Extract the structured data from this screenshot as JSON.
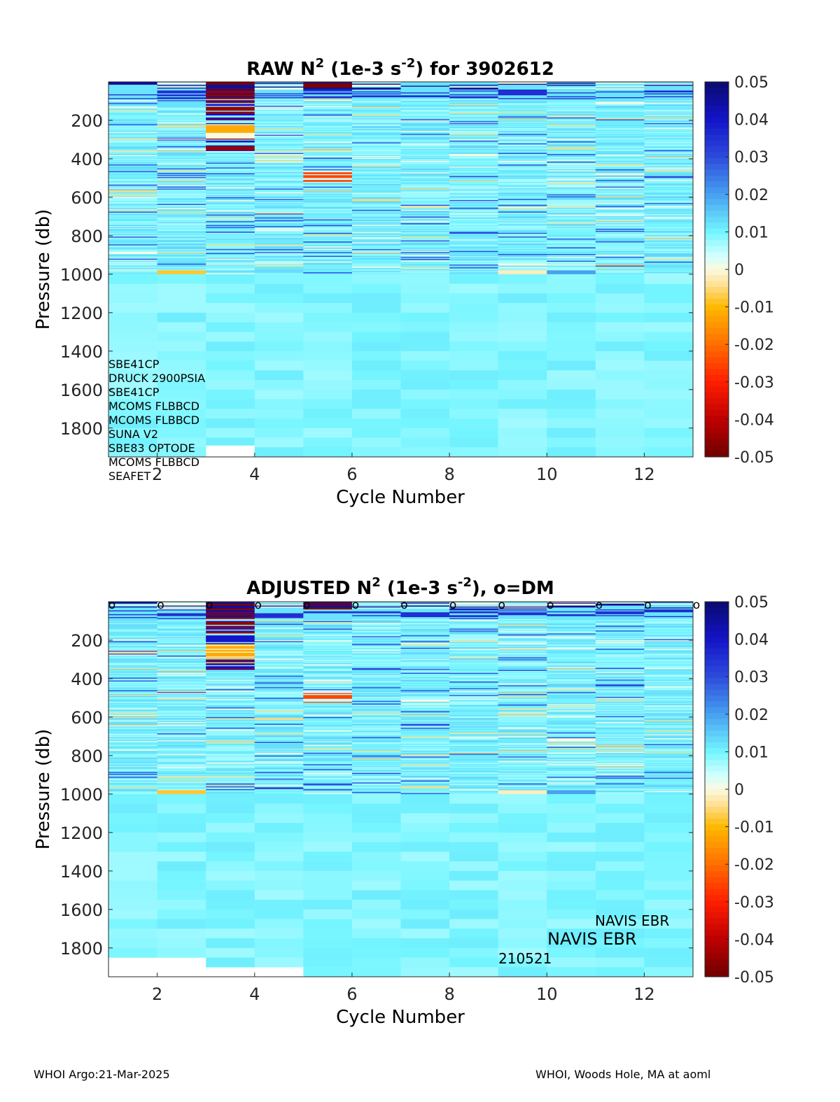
{
  "chart_data": [
    {
      "type": "heatmap",
      "title": "RAW N2 (1e-3 s-2) for 3902612",
      "title_parts": {
        "prefix": "RAW N",
        "sup1": "2",
        "middle": " (1e-3 s",
        "sup2": "-2",
        "suffix": ") for 3902612"
      },
      "xlabel": "Cycle Number",
      "ylabel": "Pressure (db)",
      "xlim": [
        1,
        13
      ],
      "ylim": [
        1950,
        0
      ],
      "y_reversed": true,
      "x_ticks": [
        2,
        4,
        6,
        8,
        10,
        12
      ],
      "y_ticks": [
        200,
        400,
        600,
        800,
        1000,
        1200,
        1400,
        1600,
        1800
      ],
      "color_limits": [
        -0.05,
        0.05
      ],
      "colormap": "blue-cyan-white-orange-red (negative red, positive blue)",
      "colorbar_ticks": [
        "0.05",
        "0.04",
        "0.03",
        "0.02",
        "0.01",
        "0",
        "-0.01",
        "-0.02",
        "-0.03",
        "-0.04",
        "-0.05"
      ],
      "cycles": [
        1,
        2,
        3,
        4,
        5,
        6,
        7,
        8,
        9,
        10,
        11,
        12
      ],
      "max_pressure": [
        1950,
        1950,
        1890,
        1950,
        1950,
        1950,
        1950,
        1950,
        1950,
        1950,
        1950,
        1950
      ],
      "upper_layer_typical": 0.01,
      "deep_layer_typical": 0.008,
      "notable_features": [
        {
          "cycle": 3,
          "pressure": [
            0,
            350
          ],
          "values": [
            -0.05,
            0.05
          ],
          "note": "strong alternating dark red / dark blue banding"
        },
        {
          "cycle": 3,
          "pressure": [
            220,
            290
          ],
          "values": [
            -0.012
          ],
          "note": "orange band"
        },
        {
          "cycle": 5,
          "pressure": [
            460,
            520
          ],
          "values": [
            -0.025
          ],
          "note": "orange-red bands"
        },
        {
          "cycle": 9,
          "pressure": [
            980,
            1000
          ],
          "value": -0.003,
          "note": "pale orange line"
        },
        {
          "cycle": 2,
          "pressure": [
            980,
            1000
          ],
          "value": -0.008,
          "note": "orange line"
        }
      ],
      "sensor_annotations": [
        "SBE41CP",
        "DRUCK 2900PSIA",
        "SBE41CP",
        "MCOMS FLBBCD",
        "MCOMS FLBBCD",
        "SUNA V2",
        "SBE83 OPTODE",
        "MCOMS FLBBCD",
        "SEAFET"
      ]
    },
    {
      "type": "heatmap",
      "title": "ADJUSTED N2 (1e-3 s-2), o=DM",
      "title_parts": {
        "prefix": "ADJUSTED N",
        "sup1": "2",
        "middle": " (1e-3 s",
        "sup2": "-2",
        "suffix": "), o=DM"
      },
      "xlabel": "Cycle Number",
      "ylabel": "Pressure (db)",
      "xlim": [
        1,
        13
      ],
      "ylim": [
        1950,
        0
      ],
      "y_reversed": true,
      "x_ticks": [
        2,
        4,
        6,
        8,
        10,
        12
      ],
      "y_ticks": [
        200,
        400,
        600,
        800,
        1000,
        1200,
        1400,
        1600,
        1800
      ],
      "color_limits": [
        -0.05,
        0.05
      ],
      "colorbar_ticks": [
        "0.05",
        "0.04",
        "0.03",
        "0.02",
        "0.01",
        "0",
        "-0.01",
        "-0.02",
        "-0.03",
        "-0.04",
        "-0.05"
      ],
      "cycles": [
        1,
        2,
        3,
        4,
        5,
        6,
        7,
        8,
        9,
        10,
        11,
        12
      ],
      "max_pressure": [
        1850,
        1850,
        1900,
        1900,
        1950,
        1950,
        1950,
        1950,
        1950,
        1950,
        1950,
        1950
      ],
      "dm_markers": {
        "symbol": "o",
        "cycles": [
          1,
          2,
          3,
          4,
          5,
          6,
          7,
          8,
          9,
          10,
          11,
          12,
          13
        ]
      },
      "annotations": [
        "NAVIS EBR",
        "NAVIS EBR",
        "210521"
      ]
    }
  ],
  "footer": {
    "left": "WHOI Argo:21-Mar-2025",
    "right": "WHOI, Woods Hole, MA at aoml"
  }
}
